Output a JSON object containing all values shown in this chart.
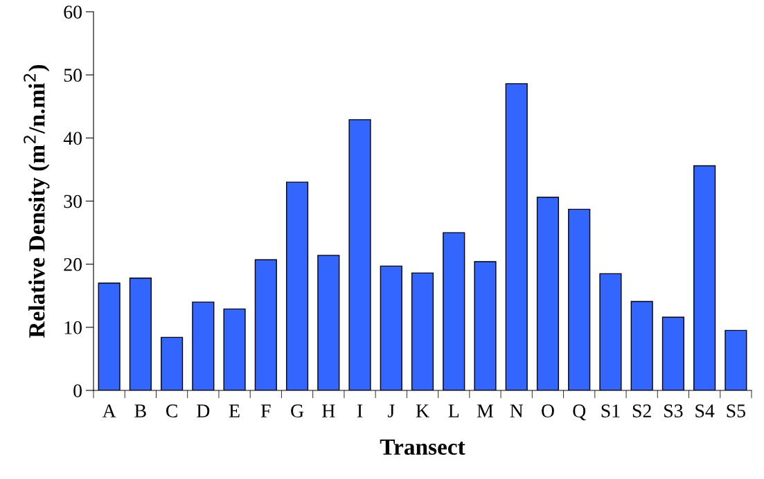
{
  "chart_data": {
    "type": "bar",
    "xlabel": "Transect",
    "ylabel": "Relative Density (m$^{2}$/n.mi$^{2}$)",
    "categories": [
      "A",
      "B",
      "C",
      "D",
      "E",
      "F",
      "G",
      "H",
      "I",
      "J",
      "K",
      "L",
      "M",
      "N",
      "O",
      "Q",
      "S1",
      "S2",
      "S3",
      "S4",
      "S5"
    ],
    "values": [
      17.0,
      17.8,
      8.4,
      14.0,
      12.9,
      20.7,
      33.0,
      21.4,
      42.9,
      19.7,
      18.6,
      25.0,
      20.4,
      48.6,
      30.6,
      28.7,
      18.5,
      14.1,
      11.6,
      35.6,
      9.5
    ],
    "color": "#3366ff",
    "ylim": [
      0,
      60
    ],
    "yticks": [
      0,
      10,
      20,
      30,
      40,
      50,
      60
    ],
    "grid": false,
    "legend": false
  }
}
